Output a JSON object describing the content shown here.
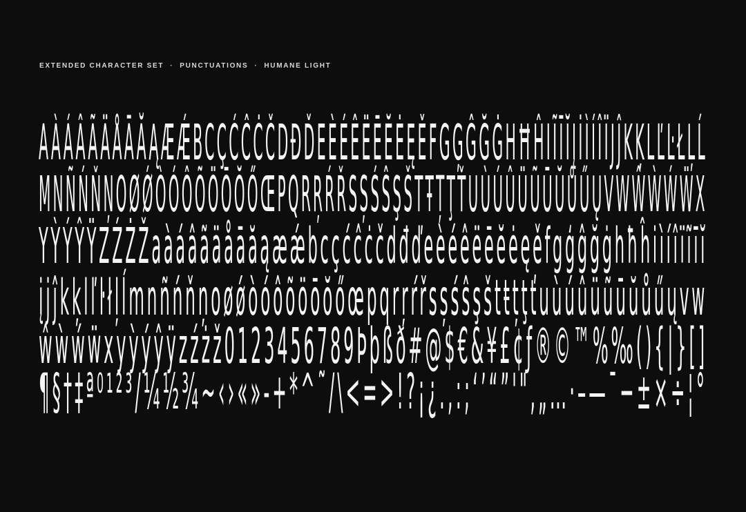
{
  "page": {
    "background_color": "#0d0d0d",
    "text_color": "#f4f4f4"
  },
  "header": {
    "segments": [
      "EXTENDED CHARACTER SET",
      "PUNCTUATIONS",
      "HUMANE LIGHT"
    ],
    "separator": "·"
  },
  "specimen": {
    "font_name": "Humane",
    "weight_name": "Light",
    "rows": [
      {
        "text": "AÀÁÂÃÄÅĀĂĄÆǼBCÇĆĈĊČDĐĎEÈÉÊËĒĔĖĘĚFGĢĜĞĠHĦĤIĨĪĬĮİÌÍÎÏJĴKĶLĽĿŁĻĹ"
      },
      {
        "text": "MNÑŃŇŅOØǾÒÓÔÕÖŌŎŐŒPQRŖŔŘSȘŚŜŞŠTŦȚŢŤUÙÚÛÜŨŪŬŮŰŲVWŴẀẂẄX"
      },
      {
        "text": "YỲÝŶŸZŹŻŽaàáâãäåāăąæǽbcçćĉċčdđďeèéêëēĕėęěfgģĝğġhħĥiìíîïĩīĭ"
      },
      {
        "text": "įjĵkķlľŀłļĺmnñńňņoøǿòóôõöōŏőœpqrŗŕřsșśŝşštŧțţťuùúûüũūŭůűųvw"
      },
      {
        "text": "ŵẁẃẅxyỳýŷÿzźżž0123456789Þþßð#@$€&¥£¢ƒ®©™%‰(){|}[]"
      },
      {
        "text": "¶§†‡ª⁰¹²³/¼½¾~‹›«»-+*^˜/\\<=>!?¡¿.,:;‘’“”'\"‚„…·–—¯−±×÷¦°"
      }
    ]
  }
}
